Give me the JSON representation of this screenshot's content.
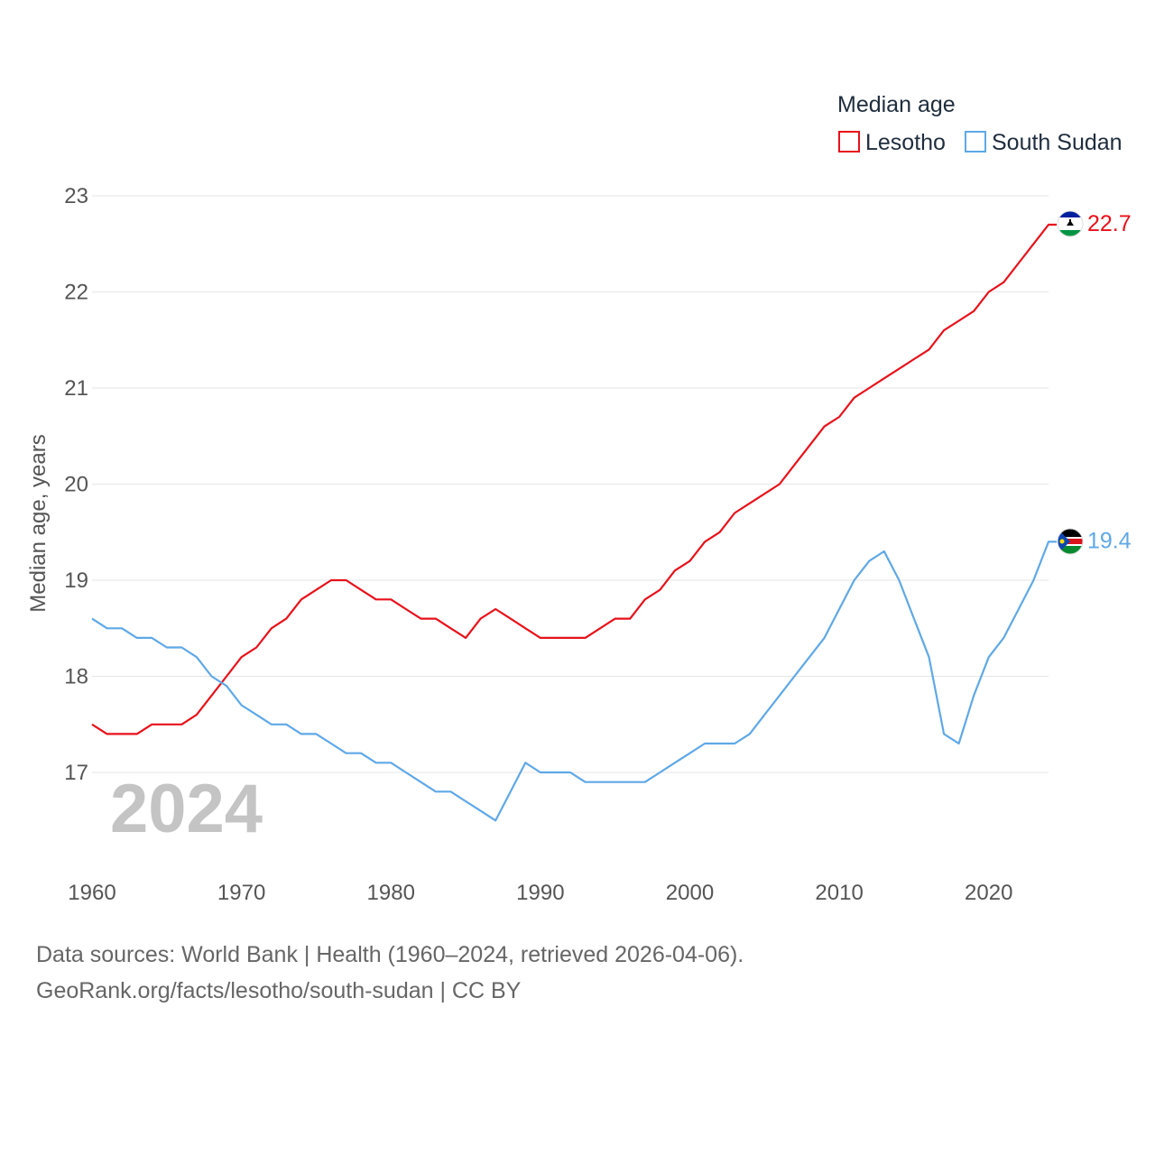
{
  "chart_data": {
    "type": "line",
    "title": "Median age",
    "xlabel": "",
    "ylabel": "Median age, years",
    "xlim": [
      1960,
      2024
    ],
    "ylim": [
      16.1,
      23.3
    ],
    "x_ticks": [
      "1960",
      "1970",
      "1980",
      "1990",
      "2000",
      "2010",
      "2020"
    ],
    "y_ticks": [
      "17",
      "18",
      "19",
      "20",
      "21",
      "22",
      "23"
    ],
    "grid": true,
    "legend": "top-right",
    "year_overlay": "2024",
    "x": [
      1960,
      1961,
      1962,
      1963,
      1964,
      1965,
      1966,
      1967,
      1968,
      1969,
      1970,
      1971,
      1972,
      1973,
      1974,
      1975,
      1976,
      1977,
      1978,
      1979,
      1980,
      1981,
      1982,
      1983,
      1984,
      1985,
      1986,
      1987,
      1988,
      1989,
      1990,
      1991,
      1992,
      1993,
      1994,
      1995,
      1996,
      1997,
      1998,
      1999,
      2000,
      2001,
      2002,
      2003,
      2004,
      2005,
      2006,
      2007,
      2008,
      2009,
      2010,
      2011,
      2012,
      2013,
      2014,
      2015,
      2016,
      2017,
      2018,
      2019,
      2020,
      2021,
      2022,
      2023,
      2024
    ],
    "series": [
      {
        "name": "Lesotho",
        "color": "#e8111b",
        "end_label": "22.7",
        "values": [
          17.5,
          17.4,
          17.4,
          17.4,
          17.5,
          17.5,
          17.5,
          17.6,
          17.8,
          18.0,
          18.2,
          18.3,
          18.5,
          18.6,
          18.8,
          18.9,
          19.0,
          19.0,
          18.9,
          18.8,
          18.8,
          18.7,
          18.6,
          18.6,
          18.5,
          18.4,
          18.6,
          18.7,
          18.6,
          18.5,
          18.4,
          18.4,
          18.4,
          18.4,
          18.5,
          18.6,
          18.6,
          18.8,
          18.9,
          19.1,
          19.2,
          19.4,
          19.5,
          19.7,
          19.8,
          19.9,
          20.0,
          20.2,
          20.4,
          20.6,
          20.7,
          20.9,
          21.0,
          21.1,
          21.2,
          21.3,
          21.4,
          21.6,
          21.7,
          21.8,
          22.0,
          22.1,
          22.3,
          22.5,
          22.7
        ]
      },
      {
        "name": "South Sudan",
        "color": "#5fa8e6",
        "end_label": "19.4",
        "values": [
          18.6,
          18.5,
          18.5,
          18.4,
          18.4,
          18.3,
          18.3,
          18.2,
          18.0,
          17.9,
          17.7,
          17.6,
          17.5,
          17.5,
          17.4,
          17.4,
          17.3,
          17.2,
          17.2,
          17.1,
          17.1,
          17.0,
          16.9,
          16.8,
          16.8,
          16.7,
          16.6,
          16.5,
          16.8,
          17.1,
          17.0,
          17.0,
          17.0,
          16.9,
          16.9,
          16.9,
          16.9,
          16.9,
          17.0,
          17.1,
          17.2,
          17.3,
          17.3,
          17.3,
          17.4,
          17.6,
          17.8,
          18.0,
          18.2,
          18.4,
          18.7,
          19.0,
          19.2,
          19.3,
          19.0,
          18.6,
          18.2,
          17.4,
          17.3,
          17.8,
          18.2,
          18.4,
          18.7,
          19.0,
          19.4
        ]
      }
    ]
  },
  "source": {
    "line1": "Data sources: World Bank | Health (1960–2024, retrieved 2026-04-06).",
    "line2": "GeoRank.org/facts/lesotho/south-sudan | CC BY"
  }
}
